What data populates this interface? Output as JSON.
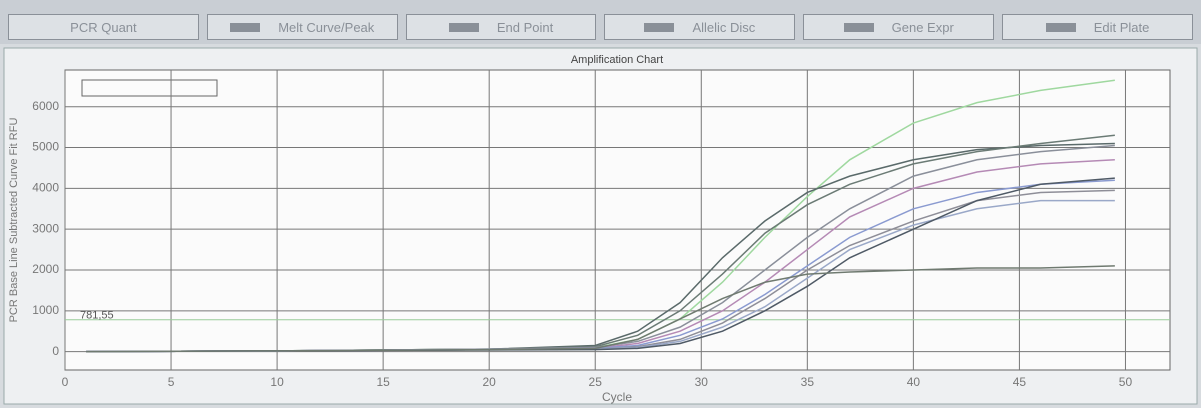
{
  "tabs": [
    "PCR Quant",
    "Melt Curve/Peak",
    "End Point",
    "Allelic Disc",
    "Gene Expr",
    "Edit Plate"
  ],
  "chart_data": {
    "type": "line",
    "title": "Amplification Chart",
    "x_label": "Cycle",
    "y_label": "PCR Base Line Subtracted Curve Fit RFU",
    "threshold": {
      "value": 781.55,
      "label": "781,55"
    },
    "x": [
      1,
      10,
      20,
      25,
      27,
      29,
      31,
      33,
      35,
      37,
      40,
      43,
      46,
      49.5
    ],
    "series": [
      {
        "color": "#9fd89f",
        "values": [
          0,
          20,
          60,
          100,
          300,
          800,
          1700,
          2800,
          3800,
          4700,
          5600,
          6100,
          6400,
          6650
        ]
      },
      {
        "color": "#5a6a6a",
        "values": [
          0,
          20,
          60,
          150,
          500,
          1200,
          2300,
          3200,
          3900,
          4300,
          4700,
          4950,
          5050,
          5100
        ]
      },
      {
        "color": "#6b7b75",
        "values": [
          0,
          20,
          60,
          120,
          400,
          1000,
          1900,
          2900,
          3600,
          4100,
          4600,
          4900,
          5100,
          5300
        ]
      },
      {
        "color": "#8a8f9a",
        "values": [
          0,
          20,
          60,
          100,
          250,
          600,
          1200,
          2000,
          2800,
          3500,
          4300,
          4700,
          4900,
          5050
        ]
      },
      {
        "color": "#b58ab5",
        "values": [
          0,
          20,
          50,
          80,
          200,
          500,
          1000,
          1700,
          2500,
          3300,
          4000,
          4400,
          4600,
          4700
        ]
      },
      {
        "color": "#8a9ad0",
        "values": [
          0,
          20,
          50,
          80,
          150,
          400,
          800,
          1400,
          2100,
          2800,
          3500,
          3900,
          4100,
          4200
        ]
      },
      {
        "color": "#8e8e98",
        "values": [
          0,
          20,
          50,
          60,
          120,
          300,
          700,
          1300,
          2000,
          2600,
          3200,
          3700,
          3900,
          3950
        ]
      },
      {
        "color": "#9aa8c8",
        "values": [
          0,
          20,
          50,
          60,
          100,
          250,
          600,
          1100,
          1800,
          2500,
          3100,
          3500,
          3700,
          3700
        ]
      },
      {
        "color": "#4f5a66",
        "values": [
          0,
          20,
          40,
          50,
          80,
          200,
          500,
          1000,
          1600,
          2300,
          3000,
          3700,
          4100,
          4250
        ]
      },
      {
        "color": "#6f7a70",
        "values": [
          0,
          20,
          50,
          80,
          300,
          800,
          1300,
          1700,
          1900,
          1950,
          2000,
          2050,
          2050,
          2100
        ]
      }
    ],
    "xlim": [
      0,
      52.1
    ],
    "ylim": [
      -450,
      6900
    ],
    "xticks": [
      0,
      5,
      10,
      15,
      20,
      25,
      30,
      35,
      40,
      45,
      50
    ],
    "yticks": [
      0,
      1000,
      2000,
      3000,
      4000,
      5000,
      6000
    ],
    "grid": true
  }
}
